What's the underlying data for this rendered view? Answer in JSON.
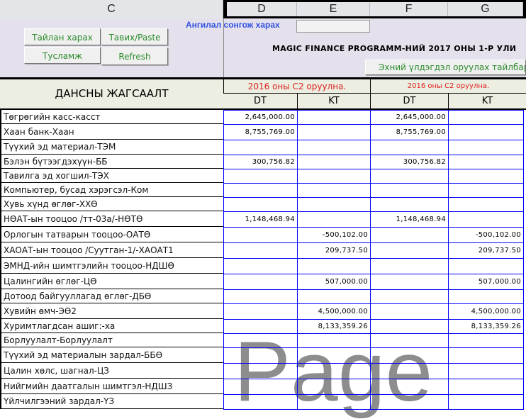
{
  "columns": [
    "C",
    "D",
    "E",
    "F",
    "G"
  ],
  "buttons": {
    "report": "Тайлан харах",
    "paste": "Тавих/Paste",
    "help": "Тусламж",
    "refresh": "Refresh",
    "opening_balance_help": "Эхний үлдэгдэл оруулах тайлбар"
  },
  "filter_label": "Ангилал сонгож харах",
  "filter_value": "",
  "title": "MAGIC FINANCE PROGRAMM-НИЙ 2017 ОНЫ 1-Р УЛИ",
  "accounts_header": "ДАНСНЫ ЖАГСААЛТ",
  "group_headers": [
    "2016 оны C2 оруулна.",
    "2016 оны C2 оруулна."
  ],
  "sub_headers": [
    "DT",
    "KT",
    "DT",
    "KT"
  ],
  "rows": [
    {
      "name": "Төгрөгийн касс-касст",
      "d": "2,645,000.00",
      "e": "",
      "f": "2,645,000.00",
      "g": ""
    },
    {
      "name": "Хаан банк-Хаан",
      "d": "8,755,769.00",
      "e": "",
      "f": "8,755,769.00",
      "g": ""
    },
    {
      "name": "Түүхий эд материал-ТЭМ",
      "d": "",
      "e": "",
      "f": "",
      "g": ""
    },
    {
      "name": "Бэлэн бүтээгдэхүүн-ББ",
      "d": "300,756.82",
      "e": "",
      "f": "300,756.82",
      "g": ""
    },
    {
      "name": "Тавилга эд хогшил-ТЭХ",
      "d": "",
      "e": "",
      "f": "",
      "g": ""
    },
    {
      "name": "Компьютер, бусад хэрэгсэл-Ком",
      "d": "",
      "e": "",
      "f": "",
      "g": ""
    },
    {
      "name": "Хувь хүнд өглөг-ХХӨ",
      "d": "",
      "e": "",
      "f": "",
      "g": ""
    },
    {
      "name": "НӨАТ-ын тооцоо /тт-03а/-НӨТӨ",
      "d": "1,148,468.94",
      "e": "",
      "f": "1,148,468.94",
      "g": ""
    },
    {
      "name": "Орлогын татварын тооцоо-ОАТӨ",
      "d": "",
      "e": "-500,102.00",
      "f": "",
      "g": "-500,102.00"
    },
    {
      "name": "ХАОАТ-ын тооцоо /Суутган-1/-ХАОАТ1",
      "d": "",
      "e": "209,737.50",
      "f": "",
      "g": "209,737.50"
    },
    {
      "name": "ЭМНД-ийн шимтгэлийн тооцоо-НДШӨ",
      "d": "",
      "e": "",
      "f": "",
      "g": ""
    },
    {
      "name": "Цалингийн өглөг-ЦӨ",
      "d": "",
      "e": "507,000.00",
      "f": "",
      "g": "507,000.00"
    },
    {
      "name": "Дотоод байгууллагад өглөг-ДБӨ",
      "d": "",
      "e": "",
      "f": "",
      "g": ""
    },
    {
      "name": "Хувийн өмч-ЭӨ2",
      "d": "",
      "e": "4,500,000.00",
      "f": "",
      "g": "4,500,000.00"
    },
    {
      "name": "Хуримтлагдсан ашиг:-ха",
      "d": "",
      "e": "8,133,359.26",
      "f": "",
      "g": "8,133,359.26"
    },
    {
      "name": "Борлуулалт-Борлуулалт",
      "d": "",
      "e": "",
      "f": "",
      "g": ""
    },
    {
      "name": "Түүхий эд материалын зардал-ББӨ",
      "d": "",
      "e": "",
      "f": "",
      "g": ""
    },
    {
      "name": "Цалин хөлс, шагнал-ЦЗ",
      "d": "",
      "e": "",
      "f": "",
      "g": ""
    },
    {
      "name": "Нийгмийн даатгалын шимтгэл-НДШЗ",
      "d": "",
      "e": "",
      "f": "",
      "g": ""
    },
    {
      "name": "Үйлчилгээний зардал-ҮЗ",
      "d": "",
      "e": "",
      "f": "",
      "g": ""
    }
  ],
  "watermark": "Page",
  "colors": {
    "grid": "#0000ff",
    "header_red": "#e02020",
    "button_text": "#2a8a2a",
    "filter_label": "#3050e0"
  }
}
